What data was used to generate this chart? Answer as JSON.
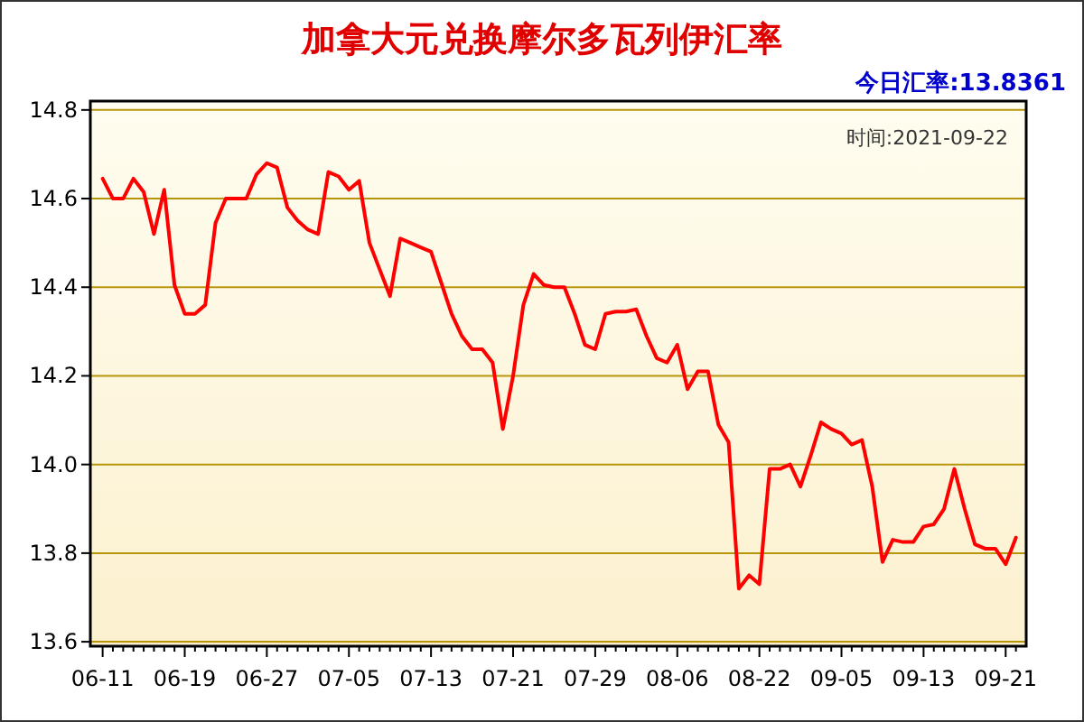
{
  "chart_data": {
    "type": "line",
    "title": "加拿大元兑换摩尔多瓦列伊汇率",
    "subtitle": "今日汇率:13.8361",
    "annotations": [
      "时间:2021-09-22"
    ],
    "categories": [
      "06-11",
      null,
      null,
      null,
      null,
      null,
      null,
      null,
      "06-19",
      null,
      null,
      null,
      null,
      null,
      null,
      null,
      "06-27",
      null,
      null,
      null,
      null,
      null,
      null,
      null,
      "07-05",
      null,
      null,
      null,
      null,
      null,
      null,
      null,
      "07-13",
      null,
      null,
      null,
      null,
      null,
      null,
      null,
      "07-21",
      null,
      null,
      null,
      null,
      null,
      null,
      null,
      "07-29",
      null,
      null,
      null,
      null,
      null,
      null,
      null,
      "08-06",
      null,
      null,
      null,
      null,
      null,
      null,
      null,
      "08-22",
      null,
      null,
      null,
      null,
      null,
      null,
      null,
      "09-05",
      null,
      null,
      null,
      null,
      null,
      null,
      null,
      "09-13",
      null,
      null,
      null,
      null,
      null,
      null,
      null,
      "09-21",
      null
    ],
    "series": [
      {
        "color": "#ff0000",
        "values": [
          14.645,
          14.6,
          14.6,
          14.645,
          14.615,
          14.52,
          14.62,
          14.405,
          14.34,
          14.34,
          14.36,
          14.545,
          14.6,
          14.6,
          14.6,
          14.655,
          14.68,
          14.67,
          14.58,
          14.55,
          14.53,
          14.52,
          14.66,
          14.65,
          14.62,
          14.64,
          14.5,
          14.44,
          14.38,
          14.51,
          14.5,
          14.49,
          14.48,
          14.41,
          14.34,
          14.29,
          14.26,
          14.26,
          14.23,
          14.08,
          14.2,
          14.36,
          14.43,
          14.405,
          14.4,
          14.4,
          14.34,
          14.27,
          14.26,
          14.34,
          14.345,
          14.345,
          14.35,
          14.29,
          14.24,
          14.23,
          14.27,
          14.17,
          14.21,
          14.21,
          14.09,
          14.05,
          13.72,
          13.75,
          13.73,
          13.99,
          13.99,
          14.0,
          13.95,
          14.02,
          14.095,
          14.08,
          14.07,
          14.045,
          14.055,
          13.95,
          13.78,
          13.83,
          13.825,
          13.825,
          13.86,
          13.865,
          13.9,
          13.99,
          13.9,
          13.82,
          13.81,
          13.81,
          13.775,
          13.835
        ]
      }
    ],
    "ylim": [
      13.59,
      14.82
    ],
    "yticks": [
      13.6,
      13.8,
      {
        "value": 14,
        "label": "14.0"
      },
      14.2,
      14.4,
      14.6,
      14.8
    ],
    "grid": "y"
  }
}
